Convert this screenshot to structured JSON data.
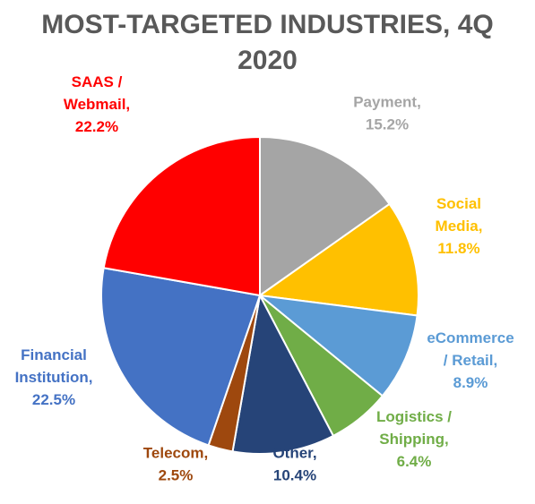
{
  "chart_data": {
    "type": "pie",
    "title_lines": [
      "MOST-TARGETED INDUSTRIES, 4Q",
      "2020"
    ],
    "slices": [
      {
        "label_lines": [
          "Payment,",
          "15.2%"
        ],
        "value": 15.2,
        "color": "#a5a5a5"
      },
      {
        "label_lines": [
          "Social",
          "Media,",
          "11.8%"
        ],
        "value": 11.8,
        "color": "#ffc000"
      },
      {
        "label_lines": [
          "eCommerce",
          "/ Retail,",
          "8.9%"
        ],
        "value": 8.9,
        "color": "#5b9bd5"
      },
      {
        "label_lines": [
          "Logistics /",
          "Shipping,",
          "6.4%"
        ],
        "value": 6.4,
        "color": "#70ad47"
      },
      {
        "label_lines": [
          "Other,",
          "10.4%"
        ],
        "value": 10.4,
        "color": "#264478"
      },
      {
        "label_lines": [
          "Telecom,",
          "2.5%"
        ],
        "value": 2.5,
        "color": "#9e480e"
      },
      {
        "label_lines": [
          "Financial",
          "Institution,",
          "22.5%"
        ],
        "value": 22.5,
        "color": "#4472c4"
      },
      {
        "label_lines": [
          "SAAS /",
          "Webmail,",
          "22.2%"
        ],
        "value": 22.2,
        "color": "#ff0000"
      }
    ],
    "legend": "none",
    "start_angle": "12 o'clock, clockwise"
  }
}
